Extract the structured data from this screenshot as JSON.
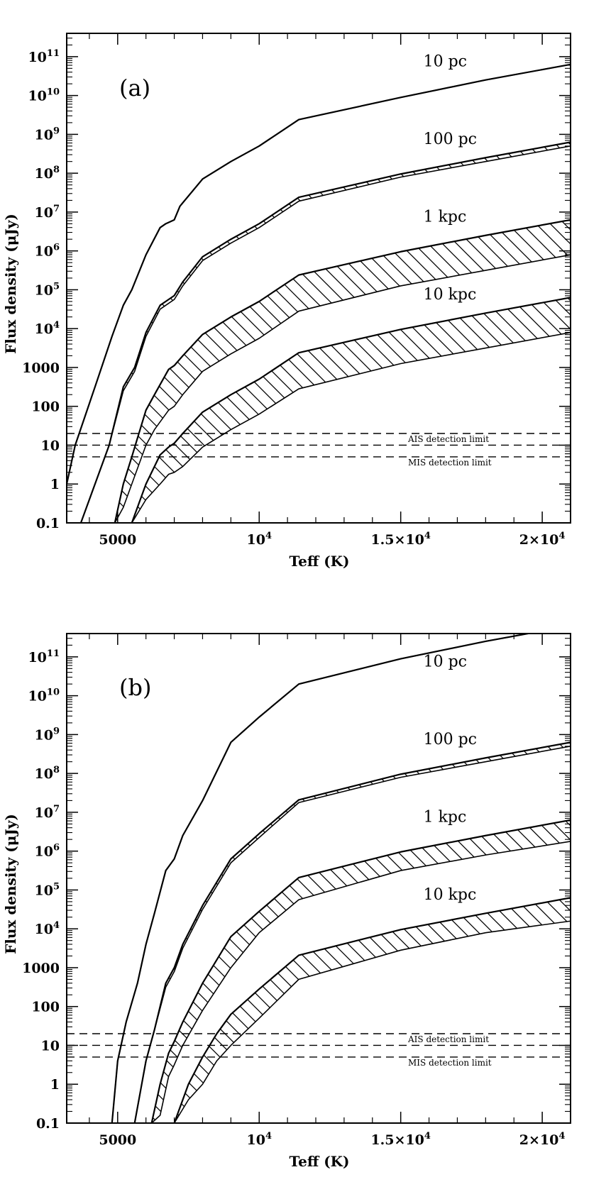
{
  "chart_data": [
    {
      "type": "line",
      "panel_label": "(a)",
      "xlabel": "Teff (K)",
      "ylabel": "Flux density (μJy)",
      "xlim": [
        3200,
        21000
      ],
      "ylim_log10": [
        -1,
        11.6
      ],
      "x_ticks": [
        {
          "value": 5000,
          "label": "5000"
        },
        {
          "value": 10000,
          "base": "10",
          "exp": "4"
        },
        {
          "value": 15000,
          "base": "1.5×10",
          "exp": "4"
        },
        {
          "value": 20000,
          "base": "2×10",
          "exp": "4"
        }
      ],
      "y_ticks": [
        {
          "log": -1,
          "label": "0.1"
        },
        {
          "log": 0,
          "label": "1"
        },
        {
          "log": 1,
          "label": "10"
        },
        {
          "log": 2,
          "label": "100"
        },
        {
          "log": 3,
          "label": "1000"
        },
        {
          "log": 4,
          "base": "10",
          "exp": "4"
        },
        {
          "log": 5,
          "base": "10",
          "exp": "5"
        },
        {
          "log": 6,
          "base": "10",
          "exp": "6"
        },
        {
          "log": 7,
          "base": "10",
          "exp": "7"
        },
        {
          "log": 8,
          "base": "10",
          "exp": "8"
        },
        {
          "log": 9,
          "base": "10",
          "exp": "9"
        },
        {
          "log": 10,
          "base": "10",
          "exp": "10"
        },
        {
          "log": 11,
          "base": "10",
          "exp": "11"
        }
      ],
      "detection_limits": [
        {
          "value": 20,
          "label": "AIS detection limit"
        },
        {
          "value": 10,
          "label": ""
        },
        {
          "value": 5,
          "label": "MIS detection limit"
        }
      ],
      "bands": [
        {
          "name": "10 pc",
          "label_x": 15800,
          "label_log": 10.75,
          "x": [
            3200,
            3500,
            4200,
            4800,
            5200,
            5500,
            6000,
            6500,
            6700,
            7000,
            7200,
            8000,
            9000,
            10000,
            11400,
            15000,
            18000,
            21000
          ],
          "upper": [
            0.0,
            1.0,
            2.5,
            3.8,
            4.6,
            5.0,
            5.9,
            6.6,
            6.7,
            6.8,
            7.15,
            7.85,
            8.3,
            8.7,
            9.38,
            9.95,
            10.4,
            10.8
          ],
          "lower": [
            0.0,
            1.0,
            2.5,
            3.8,
            4.6,
            5.0,
            5.9,
            6.6,
            6.7,
            6.8,
            7.15,
            7.85,
            8.3,
            8.7,
            9.38,
            9.95,
            10.4,
            10.8
          ]
        },
        {
          "name": "100 pc",
          "label_x": 15800,
          "label_log": 8.75,
          "x": [
            3700,
            4200,
            4700,
            5200,
            5600,
            6000,
            6500,
            6800,
            7000,
            7300,
            8000,
            9000,
            10000,
            11400,
            15000,
            18000,
            21000
          ],
          "upper": [
            -1.0,
            0.0,
            1.0,
            2.5,
            3.0,
            3.9,
            4.6,
            4.75,
            4.85,
            5.2,
            5.85,
            6.3,
            6.7,
            7.38,
            7.98,
            8.4,
            8.8
          ],
          "lower": [
            -1.0,
            0.0,
            1.0,
            2.4,
            2.9,
            3.8,
            4.5,
            4.65,
            4.75,
            5.1,
            5.75,
            6.2,
            6.6,
            7.28,
            7.9,
            8.3,
            8.7
          ]
        },
        {
          "name": "1 kpc",
          "label_x": 15800,
          "label_log": 6.75,
          "x": [
            4900,
            5200,
            5500,
            6000,
            6300,
            6800,
            7000,
            7300,
            8000,
            9000,
            10000,
            11400,
            15000,
            18000,
            21000
          ],
          "upper": [
            -1.0,
            0.0,
            0.7,
            1.9,
            2.3,
            2.95,
            3.05,
            3.3,
            3.85,
            4.3,
            4.7,
            5.38,
            5.98,
            6.4,
            6.8
          ],
          "lower": [
            -1.0,
            -0.6,
            0.0,
            1.0,
            1.4,
            1.9,
            2.0,
            2.3,
            2.9,
            3.35,
            3.75,
            4.45,
            5.1,
            5.5,
            5.9
          ]
        },
        {
          "name": "10 kpc",
          "label_x": 15800,
          "label_log": 4.75,
          "x": [
            5500,
            6000,
            6500,
            6800,
            7000,
            7300,
            8000,
            9000,
            10000,
            11400,
            15000,
            18000,
            21000
          ],
          "upper": [
            -1.0,
            0.0,
            0.75,
            0.95,
            1.05,
            1.3,
            1.85,
            2.3,
            2.7,
            3.38,
            3.98,
            4.4,
            4.8
          ],
          "lower": [
            -1.0,
            -0.4,
            0.0,
            0.25,
            0.3,
            0.45,
            0.95,
            1.4,
            1.8,
            2.45,
            3.1,
            3.5,
            3.9
          ]
        }
      ]
    },
    {
      "type": "line",
      "panel_label": "(b)",
      "xlabel": "Teff (K)",
      "ylabel": "Flux density (μJy)",
      "xlim": [
        3200,
        21000
      ],
      "ylim_log10": [
        -1,
        11.6
      ],
      "x_ticks": [
        {
          "value": 5000,
          "label": "5000"
        },
        {
          "value": 10000,
          "base": "10",
          "exp": "4"
        },
        {
          "value": 15000,
          "base": "1.5×10",
          "exp": "4"
        },
        {
          "value": 20000,
          "base": "2×10",
          "exp": "4"
        }
      ],
      "y_ticks": [
        {
          "log": -1,
          "label": "0.1"
        },
        {
          "log": 0,
          "label": "1"
        },
        {
          "log": 1,
          "label": "10"
        },
        {
          "log": 2,
          "label": "100"
        },
        {
          "log": 3,
          "label": "1000"
        },
        {
          "log": 4,
          "base": "10",
          "exp": "4"
        },
        {
          "log": 5,
          "base": "10",
          "exp": "5"
        },
        {
          "log": 6,
          "base": "10",
          "exp": "6"
        },
        {
          "log": 7,
          "base": "10",
          "exp": "7"
        },
        {
          "log": 8,
          "base": "10",
          "exp": "8"
        },
        {
          "log": 9,
          "base": "10",
          "exp": "9"
        },
        {
          "log": 10,
          "base": "10",
          "exp": "10"
        },
        {
          "log": 11,
          "base": "10",
          "exp": "11"
        }
      ],
      "detection_limits": [
        {
          "value": 20,
          "label": "AIS detection limit"
        },
        {
          "value": 10,
          "label": ""
        },
        {
          "value": 5,
          "label": "MIS detection limit"
        }
      ],
      "bands": [
        {
          "name": "10 pc",
          "label_x": 15800,
          "label_log": 10.75,
          "x": [
            4800,
            5000,
            5300,
            5700,
            6000,
            6300,
            6700,
            7000,
            7300,
            8000,
            9000,
            10000,
            11400,
            15000,
            18000,
            21000
          ],
          "upper": [
            -1.0,
            0.6,
            1.6,
            2.6,
            3.6,
            4.4,
            5.5,
            5.8,
            6.4,
            7.3,
            8.8,
            9.45,
            10.3,
            10.95,
            11.4,
            11.8
          ],
          "lower": [
            -1.0,
            0.6,
            1.6,
            2.6,
            3.6,
            4.4,
            5.5,
            5.8,
            6.4,
            7.3,
            8.8,
            9.45,
            10.3,
            10.95,
            11.4,
            11.8
          ]
        },
        {
          "name": "100 pc",
          "label_x": 15800,
          "label_log": 8.75,
          "x": [
            5600,
            6000,
            6300,
            6700,
            7000,
            7300,
            8000,
            9000,
            10000,
            11400,
            15000,
            18000,
            21000
          ],
          "upper": [
            -1.0,
            0.6,
            1.4,
            2.6,
            3.0,
            3.6,
            4.6,
            5.8,
            6.45,
            7.32,
            7.98,
            8.4,
            8.8
          ],
          "lower": [
            -1.0,
            0.6,
            1.4,
            2.5,
            2.9,
            3.5,
            4.5,
            5.7,
            6.35,
            7.25,
            7.9,
            8.3,
            8.7
          ]
        },
        {
          "name": "1 kpc",
          "label_x": 15800,
          "label_log": 6.75,
          "x": [
            6200,
            6500,
            6800,
            7000,
            7300,
            8000,
            9000,
            10000,
            11400,
            15000,
            18000,
            21000
          ],
          "upper": [
            -1.0,
            0.0,
            0.8,
            1.1,
            1.6,
            2.6,
            3.8,
            4.45,
            5.32,
            5.98,
            6.4,
            6.8
          ],
          "lower": [
            -1.0,
            -0.8,
            0.2,
            0.5,
            1.0,
            1.9,
            3.0,
            3.9,
            4.75,
            5.5,
            5.9,
            6.25
          ]
        },
        {
          "name": "10 kpc",
          "label_x": 15800,
          "label_log": 4.75,
          "x": [
            7000,
            7500,
            8000,
            8500,
            9000,
            10000,
            11400,
            15000,
            18000,
            21000
          ],
          "upper": [
            -1.0,
            0.0,
            0.7,
            1.3,
            1.8,
            2.45,
            3.32,
            3.98,
            4.4,
            4.8
          ],
          "lower": [
            -1.0,
            -0.4,
            0.0,
            0.6,
            1.0,
            1.7,
            2.7,
            3.45,
            3.9,
            4.2
          ]
        }
      ]
    }
  ]
}
